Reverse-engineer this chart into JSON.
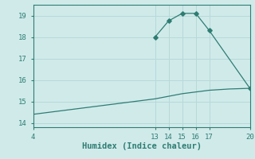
{
  "xlabel": "Humidex (Indice chaleur)",
  "ylabel": "",
  "xlim": [
    4,
    20
  ],
  "ylim": [
    13.8,
    19.5
  ],
  "xticks": [
    4,
    13,
    14,
    15,
    16,
    17,
    20
  ],
  "yticks": [
    14,
    15,
    16,
    17,
    18,
    19
  ],
  "bg_color": "#d0eaea",
  "line_color": "#2e7d72",
  "grid_color": "#b8d8d8",
  "flat_line_x": [
    4,
    4.5,
    5,
    5.5,
    6,
    6.5,
    7,
    7.5,
    8,
    8.5,
    9,
    9.5,
    10,
    10.5,
    11,
    11.5,
    12,
    12.5,
    13,
    13.5,
    14,
    14.5,
    15,
    15.5,
    16,
    16.5,
    17,
    17.5,
    18,
    18.5,
    19,
    19.5,
    20
  ],
  "flat_line_y": [
    14.4,
    14.44,
    14.48,
    14.52,
    14.56,
    14.6,
    14.64,
    14.68,
    14.72,
    14.76,
    14.8,
    14.84,
    14.88,
    14.92,
    14.96,
    15.0,
    15.04,
    15.08,
    15.12,
    15.18,
    15.24,
    15.3,
    15.36,
    15.4,
    15.44,
    15.48,
    15.52,
    15.54,
    15.56,
    15.58,
    15.59,
    15.6,
    15.61
  ],
  "peak_line_x": [
    13,
    14,
    15,
    16,
    17,
    20
  ],
  "peak_line_y": [
    18.0,
    18.75,
    19.1,
    19.1,
    18.3,
    15.61
  ],
  "marker_x": [
    13,
    14,
    15,
    16,
    17,
    20
  ],
  "marker_y": [
    18.0,
    18.75,
    19.1,
    19.1,
    18.3,
    15.61
  ]
}
